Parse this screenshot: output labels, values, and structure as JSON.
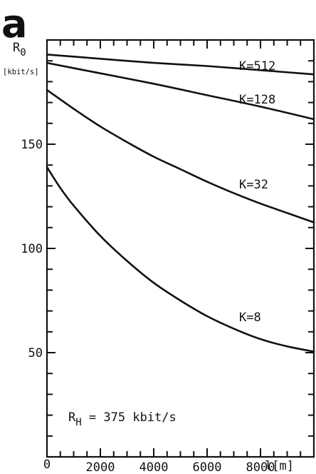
{
  "panel_label": "a",
  "chart_data": {
    "type": "line",
    "title": "",
    "ylabel_main": "R",
    "ylabel_sub": "0",
    "yunit": "[kbit/s]",
    "xlabel_main": "l",
    "xunit": "[m]",
    "xlim": [
      0,
      10000
    ],
    "ylim": [
      0,
      200
    ],
    "xticks": [
      2000,
      4000,
      6000,
      8000
    ],
    "xtick_labels": [
      "2000",
      "4000",
      "6000",
      "8000"
    ],
    "yticks": [
      50,
      100,
      150
    ],
    "ytick_labels": [
      "50",
      "100",
      "150"
    ],
    "origin_label": "0",
    "x_minor_step": 500,
    "y_minor_step": 10,
    "grid": false,
    "annotation": {
      "main": "R",
      "sub": "H",
      "rest": " = 375 kbit/s"
    },
    "series": [
      {
        "name": "K=512",
        "x": [
          0,
          2000,
          4000,
          6000,
          8000,
          10000
        ],
        "y": [
          193,
          191,
          189,
          187.5,
          185.5,
          183.5
        ]
      },
      {
        "name": "K=128",
        "x": [
          0,
          2000,
          4000,
          6000,
          8000,
          10000
        ],
        "y": [
          189,
          184,
          179,
          173.5,
          168,
          162
        ]
      },
      {
        "name": "K=32",
        "x": [
          0,
          1000,
          2000,
          3000,
          4000,
          5000,
          6000,
          7000,
          8000,
          9000,
          10000
        ],
        "y": [
          176,
          167,
          158.5,
          151,
          144,
          138,
          132,
          126.5,
          121.5,
          117,
          112.5
        ]
      },
      {
        "name": "K=8",
        "x": [
          0,
          500,
          1000,
          2000,
          3000,
          4000,
          5000,
          6000,
          7000,
          8000,
          9000,
          10000
        ],
        "y": [
          139,
          129,
          120.5,
          106,
          94,
          83.5,
          75,
          67.5,
          61.5,
          56.5,
          53,
          50.5
        ]
      }
    ]
  }
}
